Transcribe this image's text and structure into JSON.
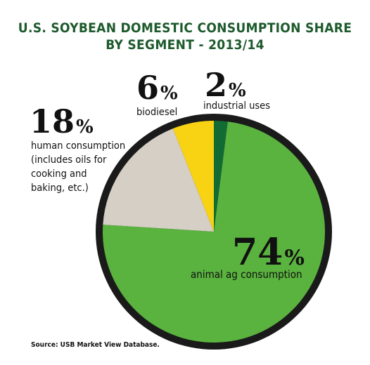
{
  "chart_data": {
    "type": "pie",
    "title_lines": [
      "U.S. SOYBEAN DOMESTIC CONSUMPTION SHARE",
      "BY SEGMENT - 2013/14"
    ],
    "slices": [
      {
        "name": "industrial uses",
        "value": 2,
        "color": "#136b34"
      },
      {
        "name": "animal ag consumption",
        "value": 74,
        "color": "#5ab23f"
      },
      {
        "name": "human consumption (includes oils for cooking and baking, etc.)",
        "value": 18,
        "color": "#d6cfc5"
      },
      {
        "name": "biodiesel",
        "value": 6,
        "color": "#f8d314"
      }
    ],
    "outline_color": "#1a1a1a"
  },
  "labels": {
    "industrial": {
      "num": "2",
      "sign": "%",
      "text": "industrial uses"
    },
    "animal": {
      "num": "74",
      "sign": "%",
      "text": "animal ag consumption"
    },
    "human": {
      "num": "18",
      "sign": "%",
      "lines": [
        "human consumption",
        "(includes oils for",
        "cooking and",
        "baking, etc.)"
      ]
    },
    "biodiesel": {
      "num": "6",
      "sign": "%",
      "text": "biodiesel"
    }
  },
  "source": "Source: USB Market View Database."
}
